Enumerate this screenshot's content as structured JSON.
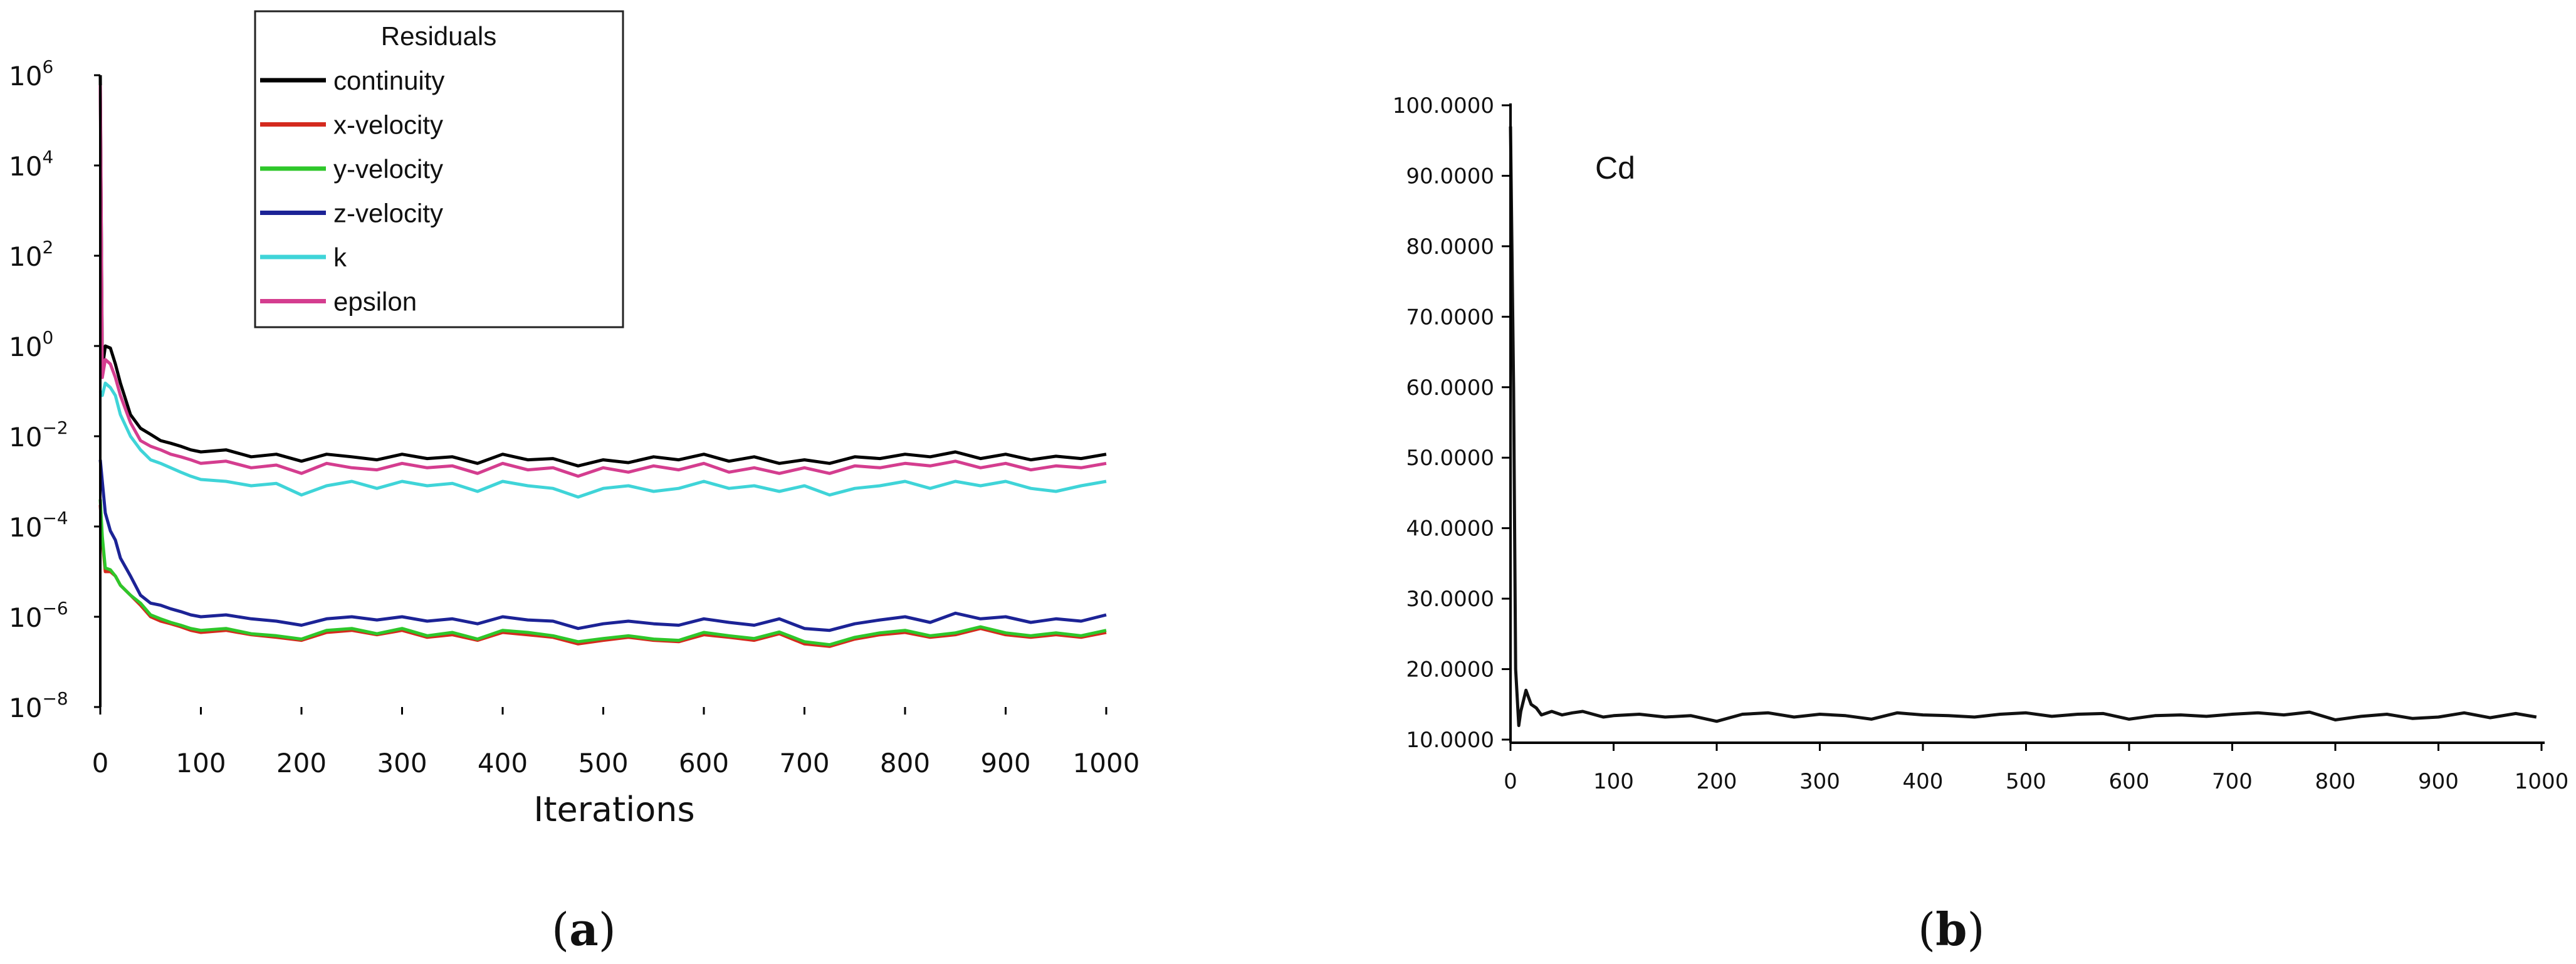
{
  "panels": {
    "a": "a",
    "b": "b"
  },
  "chart_data": [
    {
      "type": "line",
      "panel": "a",
      "title": "",
      "xlabel": "Iterations",
      "ylabel": "",
      "xlim": [
        0,
        1000
      ],
      "ylim_log10": [
        -8,
        6
      ],
      "yscale": "log",
      "x_ticks": [
        "0",
        "100",
        "200",
        "300",
        "400",
        "500",
        "600",
        "700",
        "800",
        "900",
        "1000"
      ],
      "y_ticks": [
        {
          "base": "10",
          "exp": "6"
        },
        {
          "base": "10",
          "exp": "4"
        },
        {
          "base": "10",
          "exp": "2"
        },
        {
          "base": "10",
          "exp": "0"
        },
        {
          "base": "10",
          "exp": "−2"
        },
        {
          "base": "10",
          "exp": "−4"
        },
        {
          "base": "10",
          "exp": "−6"
        },
        {
          "base": "10",
          "exp": "−8"
        }
      ],
      "grid": false,
      "legend": {
        "title": "Residuals",
        "placement": "top-center"
      },
      "x": [
        0,
        2,
        5,
        10,
        15,
        20,
        30,
        40,
        50,
        60,
        70,
        80,
        90,
        100,
        125,
        150,
        175,
        200,
        225,
        250,
        275,
        300,
        325,
        350,
        375,
        400,
        425,
        450,
        475,
        500,
        525,
        550,
        575,
        600,
        625,
        650,
        675,
        700,
        725,
        750,
        775,
        800,
        825,
        850,
        875,
        900,
        925,
        950,
        975,
        1000
      ],
      "series": [
        {
          "name": "continuity",
          "color": "#000000",
          "values": [
            1000000.0,
            0.3,
            1.0,
            0.9,
            0.4,
            0.15,
            0.03,
            0.015,
            0.011,
            0.008,
            0.007,
            0.006,
            0.005,
            0.0045,
            0.005,
            0.0035,
            0.004,
            0.0028,
            0.004,
            0.0035,
            0.003,
            0.004,
            0.0032,
            0.0035,
            0.0025,
            0.004,
            0.003,
            0.0032,
            0.0022,
            0.003,
            0.0026,
            0.0035,
            0.003,
            0.004,
            0.0028,
            0.0035,
            0.0025,
            0.003,
            0.0025,
            0.0035,
            0.0032,
            0.004,
            0.0035,
            0.0045,
            0.0032,
            0.004,
            0.003,
            0.0036,
            0.0032,
            0.004
          ]
        },
        {
          "name": "x-velocity",
          "color": "#d42a1e",
          "values": [
            0.0003,
            5e-05,
            1e-05,
            1e-05,
            8e-06,
            5e-06,
            3e-06,
            1.8e-06,
            1e-06,
            8e-07,
            7e-07,
            6e-07,
            5e-07,
            4.5e-07,
            5e-07,
            4e-07,
            3.5e-07,
            3e-07,
            4.5e-07,
            5e-07,
            4e-07,
            5e-07,
            3.5e-07,
            4e-07,
            3e-07,
            4.5e-07,
            4e-07,
            3.5e-07,
            2.5e-07,
            3e-07,
            3.5e-07,
            3e-07,
            2.8e-07,
            4e-07,
            3.5e-07,
            3e-07,
            4.2e-07,
            2.5e-07,
            2.2e-07,
            3.2e-07,
            4e-07,
            4.5e-07,
            3.5e-07,
            4e-07,
            5.5e-07,
            4e-07,
            3.5e-07,
            4e-07,
            3.5e-07,
            4.5e-07
          ]
        },
        {
          "name": "y-velocity",
          "color": "#2ec72a",
          "values": [
            0.0004,
            6e-05,
            1.2e-05,
            1.1e-05,
            8e-06,
            5e-06,
            3e-06,
            2e-06,
            1.1e-06,
            9e-07,
            7.5e-07,
            6.5e-07,
            5.5e-07,
            5e-07,
            5.5e-07,
            4.2e-07,
            3.8e-07,
            3.2e-07,
            5e-07,
            5.5e-07,
            4.2e-07,
            5.5e-07,
            3.8e-07,
            4.5e-07,
            3.2e-07,
            5e-07,
            4.5e-07,
            3.8e-07,
            2.8e-07,
            3.3e-07,
            3.8e-07,
            3.2e-07,
            3e-07,
            4.5e-07,
            3.8e-07,
            3.3e-07,
            4.6e-07,
            2.8e-07,
            2.4e-07,
            3.5e-07,
            4.4e-07,
            5e-07,
            3.8e-07,
            4.4e-07,
            6e-07,
            4.4e-07,
            3.8e-07,
            4.4e-07,
            3.8e-07,
            5e-07
          ]
        },
        {
          "name": "z-velocity",
          "color": "#1c2396",
          "values": [
            0.003,
            0.001,
            0.0002,
            8e-05,
            5e-05,
            2e-05,
            8e-06,
            3e-06,
            2e-06,
            1.8e-06,
            1.5e-06,
            1.3e-06,
            1.1e-06,
            1e-06,
            1.1e-06,
            9e-07,
            8e-07,
            6.5e-07,
            9e-07,
            1e-06,
            8.5e-07,
            1e-06,
            8e-07,
            9e-07,
            7e-07,
            1e-06,
            8.5e-07,
            8e-07,
            5.5e-07,
            7e-07,
            8e-07,
            7e-07,
            6.5e-07,
            9e-07,
            7.5e-07,
            6.5e-07,
            9e-07,
            5.5e-07,
            5e-07,
            7e-07,
            8.5e-07,
            1e-06,
            7.5e-07,
            1.2e-06,
            9e-07,
            1e-06,
            7.5e-07,
            9e-07,
            8e-07,
            1.1e-06
          ]
        },
        {
          "name": "k",
          "color": "#3fd4d8",
          "values": [
            0.1,
            0.08,
            0.15,
            0.12,
            0.08,
            0.03,
            0.01,
            0.005,
            0.003,
            0.0025,
            0.002,
            0.0016,
            0.0013,
            0.0011,
            0.001,
            0.0008,
            0.0009,
            0.0005,
            0.0008,
            0.001,
            0.0007,
            0.001,
            0.0008,
            0.0009,
            0.0006,
            0.001,
            0.0008,
            0.0007,
            0.00045,
            0.0007,
            0.0008,
            0.0006,
            0.0007,
            0.001,
            0.0007,
            0.0008,
            0.0006,
            0.0008,
            0.0005,
            0.0007,
            0.0008,
            0.001,
            0.0007,
            0.001,
            0.0008,
            0.001,
            0.0007,
            0.0006,
            0.0008,
            0.001
          ]
        },
        {
          "name": "epsilon",
          "color": "#d43d8f",
          "values": [
            600000.0,
            0.2,
            0.5,
            0.4,
            0.2,
            0.08,
            0.02,
            0.008,
            0.006,
            0.005,
            0.004,
            0.0035,
            0.003,
            0.0025,
            0.0028,
            0.002,
            0.0023,
            0.0015,
            0.0025,
            0.002,
            0.0018,
            0.0025,
            0.002,
            0.0022,
            0.0015,
            0.0025,
            0.0018,
            0.002,
            0.0013,
            0.002,
            0.0016,
            0.0022,
            0.0018,
            0.0025,
            0.0016,
            0.002,
            0.0015,
            0.002,
            0.0015,
            0.0022,
            0.002,
            0.0025,
            0.0022,
            0.0028,
            0.002,
            0.0025,
            0.0018,
            0.0022,
            0.002,
            0.0025
          ]
        }
      ]
    },
    {
      "type": "line",
      "panel": "b",
      "title": "",
      "xlabel": "",
      "ylabel": "",
      "annotation": "Cd",
      "xlim": [
        0,
        1000
      ],
      "ylim": [
        10,
        100
      ],
      "x_ticks": [
        "0",
        "100",
        "200",
        "300",
        "400",
        "500",
        "600",
        "700",
        "800",
        "900",
        "1000"
      ],
      "y_ticks": [
        "100.0000",
        "90.0000",
        "80.0000",
        "70.0000",
        "60.0000",
        "50.0000",
        "40.0000",
        "30.0000",
        "20.0000",
        "10.0000"
      ],
      "grid": false,
      "x": [
        0,
        3,
        5,
        8,
        10,
        15,
        20,
        25,
        30,
        40,
        50,
        60,
        70,
        80,
        90,
        100,
        125,
        150,
        175,
        200,
        225,
        250,
        275,
        300,
        325,
        350,
        375,
        400,
        425,
        450,
        475,
        500,
        525,
        550,
        575,
        600,
        625,
        650,
        675,
        700,
        725,
        750,
        775,
        800,
        825,
        850,
        875,
        900,
        925,
        950,
        975,
        995
      ],
      "series": [
        {
          "name": "",
          "color": "#111111",
          "values": [
            97,
            60,
            20,
            12,
            14,
            17,
            15,
            14.5,
            13.5,
            14,
            13.5,
            13.8,
            14,
            13.6,
            13.2,
            13.4,
            13.6,
            13.2,
            13.4,
            12.6,
            13.6,
            13.8,
            13.2,
            13.6,
            13.4,
            12.9,
            13.8,
            13.5,
            13.4,
            13.2,
            13.6,
            13.8,
            13.3,
            13.6,
            13.7,
            12.9,
            13.4,
            13.5,
            13.3,
            13.6,
            13.8,
            13.5,
            13.9,
            12.8,
            13.3,
            13.6,
            13,
            13.2,
            13.8,
            13.1,
            13.7,
            13.2
          ]
        }
      ]
    }
  ]
}
